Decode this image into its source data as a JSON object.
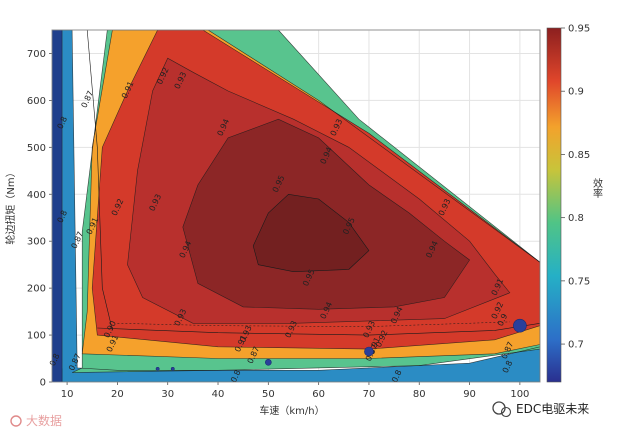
{
  "chart_data": {
    "type": "heatmap",
    "subtype": "filled-contour efficiency map",
    "title": "",
    "xlabel": "车速（km/h）",
    "ylabel": "轮边扭矩（Nm）",
    "xlim": [
      7,
      104
    ],
    "ylim": [
      0,
      750
    ],
    "xticks": [
      10,
      20,
      30,
      40,
      50,
      60,
      70,
      80,
      90,
      100
    ],
    "yticks": [
      0,
      100,
      200,
      300,
      400,
      500,
      600,
      700
    ],
    "grid": true,
    "colorbar": {
      "label": "效率",
      "range": [
        0.67,
        0.95
      ],
      "ticks": [
        0.7,
        0.75,
        0.8,
        0.85,
        0.9,
        0.95
      ],
      "colormap": "parula-to-jet (blue-cyan-green-yellow-orange-red-darkred)"
    },
    "contour_levels": [
      0.7,
      0.8,
      0.87,
      0.9,
      0.91,
      0.92,
      0.93,
      0.94,
      0.95
    ],
    "region_colors": {
      "lt_0.7": "#1f3f8c",
      "0.7_0.8": "#2b8cc4",
      "0.8_0.87": "#58c48e",
      "0.87_0.9": "#f5a12c",
      "0.9_0.93": "#d43a2a",
      "0.93_0.94": "#b8302d",
      "gt_0.94": "#8c2626"
    },
    "contour_labels": [
      {
        "value": "0.8",
        "x": 9.5,
        "y": 550
      },
      {
        "value": "0.8",
        "x": 9.5,
        "y": 350
      },
      {
        "value": "0.87",
        "x": 14.5,
        "y": 600
      },
      {
        "value": "0.87",
        "x": 12.5,
        "y": 300
      },
      {
        "value": "0.91",
        "x": 22.5,
        "y": 620
      },
      {
        "value": "0.91",
        "x": 15.5,
        "y": 330
      },
      {
        "value": "0.92",
        "x": 29.5,
        "y": 650
      },
      {
        "value": "0.92",
        "x": 20.5,
        "y": 370
      },
      {
        "value": "0.93",
        "x": 33,
        "y": 640
      },
      {
        "value": "0.93",
        "x": 28,
        "y": 380
      },
      {
        "value": "0.94",
        "x": 41.5,
        "y": 540
      },
      {
        "value": "0.94",
        "x": 34,
        "y": 280
      },
      {
        "value": "0.95",
        "x": 52.5,
        "y": 420
      },
      {
        "value": "0.95",
        "x": 58.5,
        "y": 220
      },
      {
        "value": "0.95",
        "x": 66.5,
        "y": 330
      },
      {
        "value": "0.93",
        "x": 64,
        "y": 540
      },
      {
        "value": "0.94",
        "x": 62,
        "y": 480
      },
      {
        "value": "0.93",
        "x": 85.5,
        "y": 370
      },
      {
        "value": "0.94",
        "x": 83,
        "y": 280
      },
      {
        "value": "0.91",
        "x": 96,
        "y": 200
      },
      {
        "value": "0.94",
        "x": 62,
        "y": 150
      },
      {
        "value": "0.94",
        "x": 76,
        "y": 140
      },
      {
        "value": "0.93",
        "x": 33,
        "y": 135
      },
      {
        "value": "0.93",
        "x": 46,
        "y": 100
      },
      {
        "value": "0.93",
        "x": 55,
        "y": 110
      },
      {
        "value": "0.93",
        "x": 70.5,
        "y": 110
      },
      {
        "value": "0.92",
        "x": 73,
        "y": 90
      },
      {
        "value": "0.92",
        "x": 96,
        "y": 150
      },
      {
        "value": "0.90",
        "x": 19,
        "y": 110
      },
      {
        "value": "0.91",
        "x": 19.5,
        "y": 80
      },
      {
        "value": "0.91",
        "x": 45,
        "y": 80
      },
      {
        "value": "0.91",
        "x": 71.5,
        "y": 75
      },
      {
        "value": "0.9",
        "x": 97,
        "y": 130
      },
      {
        "value": "0.87",
        "x": 12,
        "y": 40
      },
      {
        "value": "0.87",
        "x": 47.5,
        "y": 55
      },
      {
        "value": "0.87",
        "x": 71,
        "y": 60
      },
      {
        "value": "0.87",
        "x": 98,
        "y": 65
      },
      {
        "value": "0.8",
        "x": 8,
        "y": 45
      },
      {
        "value": "0.8",
        "x": 44,
        "y": 10
      },
      {
        "value": "0.8",
        "x": 76,
        "y": 10
      },
      {
        "value": "0.8",
        "x": 98,
        "y": 30
      }
    ],
    "markers": [
      {
        "x": 50,
        "y": 42,
        "size": "small"
      },
      {
        "x": 70,
        "y": 65,
        "size": "medium"
      },
      {
        "x": 100,
        "y": 120,
        "size": "large"
      },
      {
        "x": 28,
        "y": 28,
        "size": "tiny"
      },
      {
        "x": 31,
        "y": 28,
        "size": "tiny"
      }
    ]
  },
  "watermarks": {
    "left_text": "大数据",
    "right_text": "EDC电驱未来"
  },
  "colors": {
    "marker": "#2a3f9a",
    "contour_line": "#1a1a1a"
  }
}
